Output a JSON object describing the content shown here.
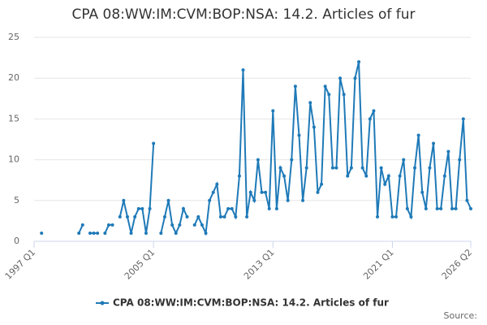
{
  "chart_data": {
    "type": "line",
    "title": "CPA 08:WW:IM:CVM:BOP:NSA: 14.2. Articles of fur",
    "source_label": "Source:",
    "x": [
      1997,
      1997.25,
      1997.5,
      1997.75,
      1998,
      1998.25,
      1998.5,
      1998.75,
      1999,
      1999.25,
      1999.5,
      1999.75,
      2000,
      2000.25,
      2000.5,
      2000.75,
      2001,
      2001.25,
      2001.5,
      2001.75,
      2002,
      2002.25,
      2002.5,
      2002.75,
      2003,
      2003.25,
      2003.5,
      2003.75,
      2004,
      2004.25,
      2004.5,
      2004.75,
      2005,
      2005.25,
      2005.5,
      2005.75,
      2006,
      2006.25,
      2006.5,
      2006.75,
      2007,
      2007.25,
      2007.5,
      2007.75,
      2008,
      2008.25,
      2008.5,
      2008.75,
      2009,
      2009.25,
      2009.5,
      2009.75,
      2010,
      2010.25,
      2010.5,
      2010.75,
      2011,
      2011.25,
      2011.5,
      2011.75,
      2012,
      2012.25,
      2012.5,
      2012.75,
      2013,
      2013.25,
      2013.5,
      2013.75,
      2014,
      2014.25,
      2014.5,
      2014.75,
      2015,
      2015.25,
      2015.5,
      2015.75,
      2016,
      2016.25,
      2016.5,
      2016.75,
      2017,
      2017.25,
      2017.5,
      2017.75,
      2018,
      2018.25,
      2018.5,
      2018.75,
      2019,
      2019.25,
      2019.5,
      2019.75,
      2020,
      2020.25,
      2020.5,
      2020.75,
      2021,
      2021.25,
      2021.5,
      2021.75,
      2022,
      2022.25,
      2022.5,
      2022.75,
      2023,
      2023.25,
      2023.5,
      2023.75,
      2024,
      2024.25,
      2024.5,
      2024.75,
      2025,
      2025.25,
      2025.5,
      2025.75,
      2026,
      2026.25
    ],
    "series": [
      {
        "name": "CPA 08:WW:IM:CVM:BOP:NSA: 14.2. Articles of fur",
        "color": "#1f7ab8",
        "values": [
          null,
          null,
          1,
          null,
          null,
          null,
          null,
          null,
          null,
          null,
          null,
          null,
          1,
          2,
          null,
          1,
          1,
          1,
          null,
          1,
          2,
          2,
          null,
          3,
          5,
          3,
          1,
          3,
          4,
          4,
          1,
          4,
          12,
          null,
          1,
          3,
          5,
          2,
          1,
          2,
          4,
          3,
          null,
          2,
          3,
          2,
          1,
          5,
          6,
          7,
          3,
          3,
          4,
          4,
          3,
          8,
          21,
          3,
          6,
          5,
          10,
          6,
          6,
          4,
          16,
          4,
          9,
          8,
          5,
          10,
          19,
          13,
          5,
          9,
          17,
          14,
          6,
          7,
          19,
          18,
          9,
          9,
          20,
          18,
          8,
          9,
          20,
          22,
          9,
          8,
          15,
          16,
          3,
          9,
          7,
          8,
          3,
          3,
          8,
          10,
          4,
          3,
          9,
          13,
          6,
          4,
          9,
          12,
          4,
          4,
          8,
          11,
          4,
          4,
          10,
          15,
          5,
          4
        ]
      }
    ],
    "xlim": [
      1997,
      2026.25
    ],
    "xticks": [
      {
        "value": 1997,
        "label": "1997 Q1"
      },
      {
        "value": 2005,
        "label": "2005 Q1"
      },
      {
        "value": 2013,
        "label": "2013 Q1"
      },
      {
        "value": 2021,
        "label": "2021 Q1"
      },
      {
        "value": 2026.25,
        "label": "2026 Q2"
      }
    ],
    "ylim": [
      0,
      25
    ],
    "yticks": [
      0,
      5,
      10,
      15,
      20,
      25
    ],
    "grid": true,
    "legend": "bottom"
  }
}
